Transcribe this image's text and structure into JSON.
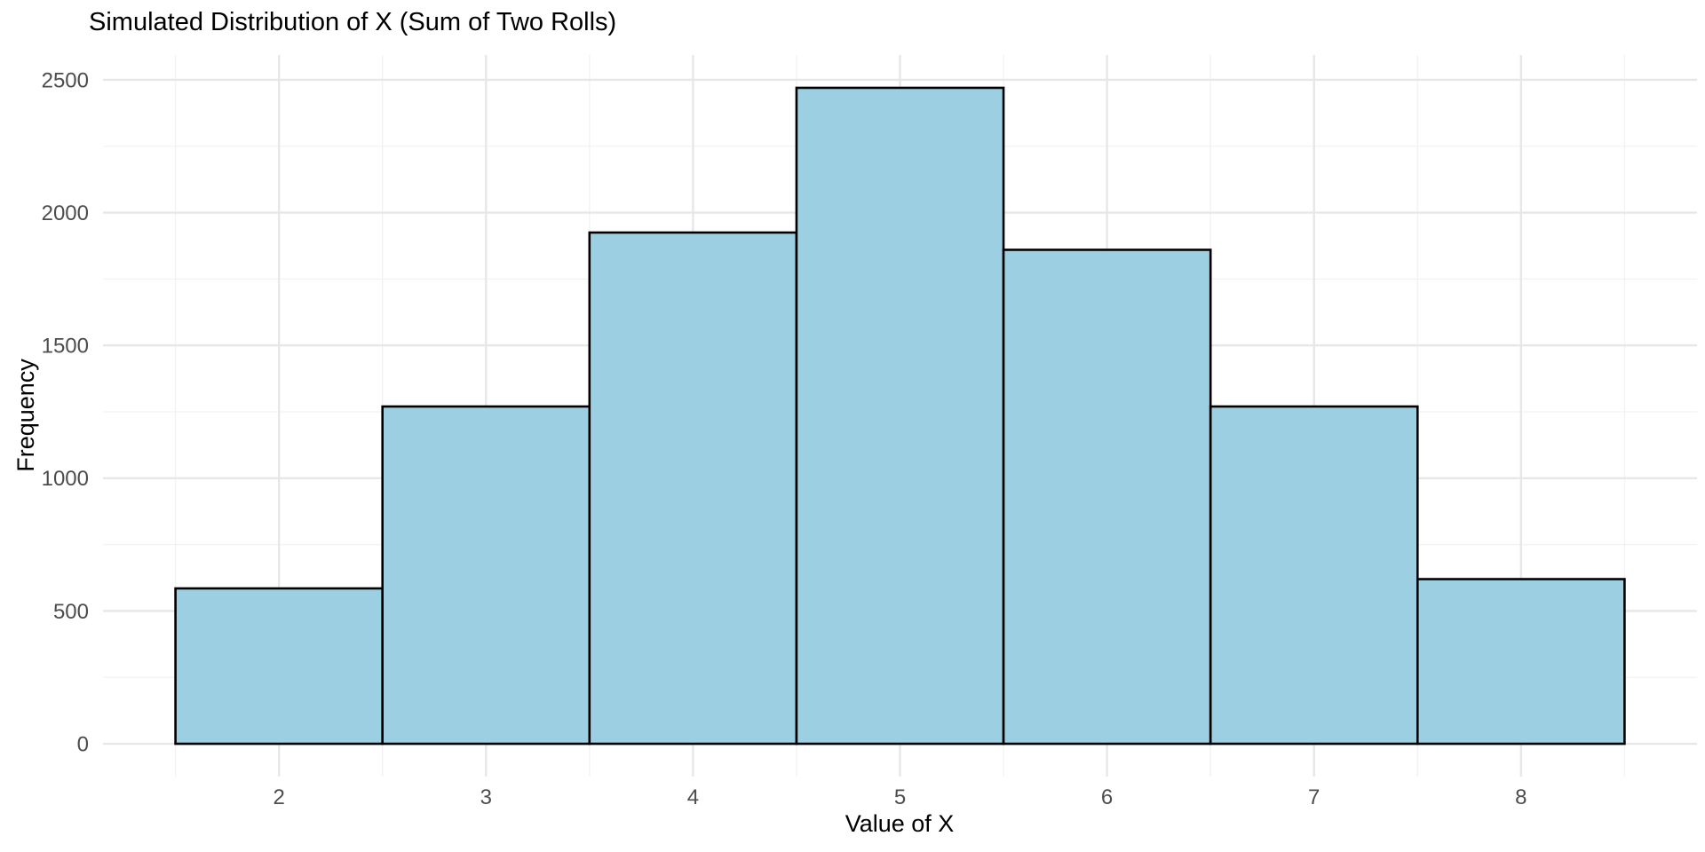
{
  "chart_data": {
    "type": "bar",
    "subtype": "histogram",
    "title": "Simulated Distribution of X (Sum of Two Rolls)",
    "xlabel": "Value of X",
    "ylabel": "Frequency",
    "categories": [
      2,
      3,
      4,
      5,
      6,
      7,
      8
    ],
    "values": [
      585,
      1270,
      1925,
      2470,
      1860,
      1270,
      620
    ],
    "bar_width": 1,
    "x_tick_values": [
      2,
      3,
      4,
      5,
      6,
      7,
      8
    ],
    "x_tick_labels": [
      "2",
      "3",
      "4",
      "5",
      "6",
      "7",
      "8"
    ],
    "y_tick_values": [
      0,
      500,
      1000,
      1500,
      2000,
      2500
    ],
    "y_tick_labels": [
      "0",
      "500",
      "1000",
      "1500",
      "2000",
      "2500"
    ],
    "xlim": [
      1.5,
      8.5
    ],
    "ylim": [
      0,
      2500
    ],
    "grid": "on",
    "legend": "none",
    "colors": {
      "bar_fill": "#9DCFE2",
      "bar_stroke": "#000000",
      "grid_major": "#E7E7E7",
      "grid_minor": "#F2F2F2",
      "tick_label": "#4D4D4D",
      "axis_title": "#000000",
      "title": "#000000",
      "background": "#FFFFFF"
    }
  }
}
